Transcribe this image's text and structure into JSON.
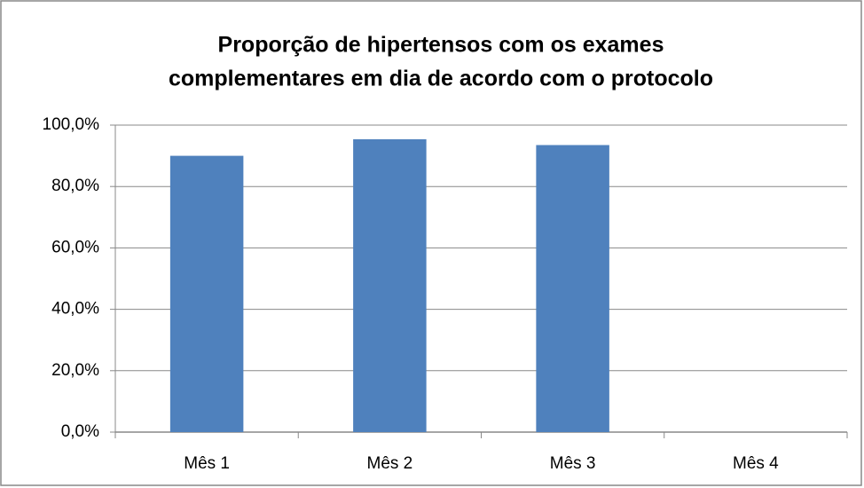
{
  "chart_data": {
    "type": "bar",
    "title": [
      "Proporção de hipertensos com os exames",
      "complementares em dia de acordo com o protocolo"
    ],
    "categories": [
      "Mês 1",
      "Mês 2",
      "Mês 3",
      "Mês 4"
    ],
    "values": [
      90.0,
      95.4,
      93.5,
      null
    ],
    "color": "#4f81bd",
    "ylim": [
      0,
      100
    ],
    "yticks": [
      {
        "value": 0,
        "label": "0,0%"
      },
      {
        "value": 20,
        "label": "20,0%"
      },
      {
        "value": 40,
        "label": "40,0%"
      },
      {
        "value": 60,
        "label": "60,0%"
      },
      {
        "value": 80,
        "label": "80,0%"
      },
      {
        "value": 100,
        "label": "100,0%"
      }
    ],
    "grid": true
  }
}
